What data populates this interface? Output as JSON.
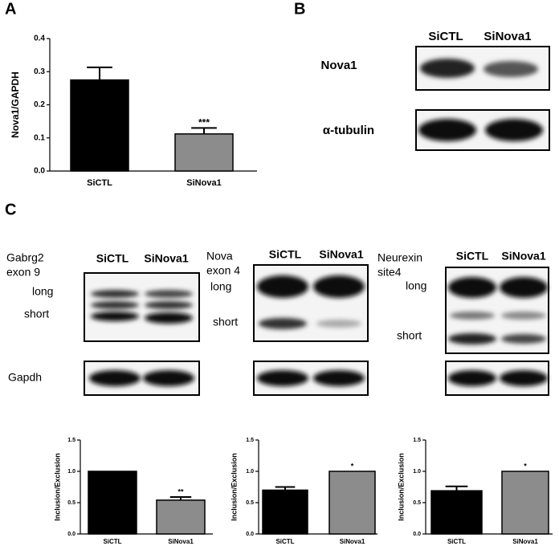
{
  "panel_labels": [
    "A",
    "B",
    "C"
  ],
  "chart_data": [
    {
      "type": "bar",
      "ylabel": "Nova1/GAPDH",
      "categories": [
        "SiCTL",
        "SiNova1"
      ],
      "values": [
        0.275,
        0.112
      ],
      "errors": [
        0.038,
        0.018
      ],
      "significance": "***",
      "colors": [
        "#000000",
        "#8c8c8c"
      ],
      "ylim": [
        0,
        0.4
      ],
      "yticks": [
        {
          "value": 0,
          "label": "0.0"
        },
        0.1,
        0.2,
        0.3,
        0.4
      ]
    },
    {
      "type": "bar",
      "ylabel": "Inclusion/Exclusion",
      "categories": [
        "SiCTL",
        "SiNova1"
      ],
      "values": [
        1.0,
        0.54
      ],
      "errors": [
        0,
        0.05
      ],
      "significance": "**",
      "colors": [
        "#000000",
        "#8c8c8c"
      ],
      "ylim": [
        0,
        1.5
      ],
      "yticks": [
        {
          "value": 0,
          "label": "0.0"
        },
        0.5,
        {
          "value": 1,
          "label": "1.0"
        },
        1.5
      ]
    },
    {
      "type": "bar",
      "ylabel": "Inclusion/Exclusion",
      "categories": [
        "SiCTL",
        "SiNova1"
      ],
      "values": [
        0.7,
        1.0
      ],
      "errors": [
        0.05,
        0
      ],
      "significance": "*",
      "colors": [
        "#000000",
        "#8c8c8c"
      ],
      "ylim": [
        0,
        1.5
      ],
      "yticks": [
        {
          "value": 0,
          "label": "0.0"
        },
        0.5,
        {
          "value": 1,
          "label": "1.0"
        },
        1.5
      ]
    },
    {
      "type": "bar",
      "ylabel": "Inclusion/Exclusion",
      "categories": [
        "SiCTL",
        "SiNova1"
      ],
      "values": [
        0.69,
        1.0
      ],
      "errors": [
        0.07,
        0
      ],
      "significance": "*",
      "colors": [
        "#000000",
        "#8c8c8c"
      ],
      "ylim": [
        0,
        1.5
      ],
      "yticks": [
        {
          "value": 0,
          "label": "0.0"
        },
        0.5,
        {
          "value": 1,
          "label": "1.0"
        },
        1.5
      ]
    }
  ],
  "blot": {
    "columns": [
      "SiCTL",
      "SiNova1"
    ],
    "rows": [
      "Nova1",
      "α-tubulin"
    ]
  },
  "gels": [
    {
      "title": [
        "Gabrg2",
        "exon 9"
      ],
      "columns": [
        "SiCTL",
        "SiNova1"
      ],
      "bands": [
        "long",
        "short"
      ],
      "loading": "Gapdh"
    },
    {
      "title": [
        "Nova",
        "exon 4"
      ],
      "columns": [
        "SiCTL",
        "SiNova1"
      ],
      "bands": [
        "long",
        "short"
      ]
    },
    {
      "title": [
        "Neurexin",
        "site4"
      ],
      "columns": [
        "SiCTL",
        "SiNova1"
      ],
      "bands": [
        "long",
        "short"
      ]
    }
  ]
}
